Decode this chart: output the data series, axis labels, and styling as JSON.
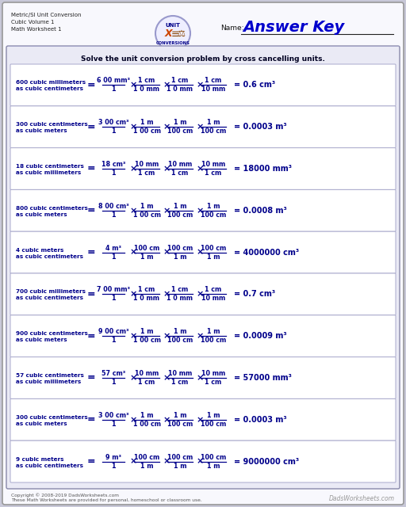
{
  "title_left": [
    "Metric/SI Unit Conversion",
    "Cubic Volume 1",
    "Math Worksheet 1"
  ],
  "answer_key": "Answer Key",
  "name_label": "Name:",
  "instruction": "Solve the unit conversion problem by cross cancelling units.",
  "dark_blue": "#00008B",
  "problems": [
    {
      "line1": "600 cubic millimeters",
      "line2": "as cubic centimeters",
      "num_frac": "6 00 mm³",
      "den_frac": "1",
      "fracs": [
        {
          "num": "1 cm",
          "den": "1 0 mm"
        },
        {
          "num": "1 cm",
          "den": "1 0 mm"
        },
        {
          "num": "1 cm",
          "den": "10 mm"
        }
      ],
      "result": "0.6 cm³"
    },
    {
      "line1": "300 cubic centimeters",
      "line2": "as cubic meters",
      "num_frac": "3 00 cm³",
      "den_frac": "1",
      "fracs": [
        {
          "num": "1 m",
          "den": "1 00 cm"
        },
        {
          "num": "1 m",
          "den": "100 cm"
        },
        {
          "num": "1 m",
          "den": "100 cm"
        }
      ],
      "result": "0.0003 m³"
    },
    {
      "line1": "18 cubic centimeters",
      "line2": "as cubic millimeters",
      "num_frac": "18 cm³",
      "den_frac": "1",
      "fracs": [
        {
          "num": "10 mm",
          "den": "1 cm"
        },
        {
          "num": "10 mm",
          "den": "1 cm"
        },
        {
          "num": "10 mm",
          "den": "1 cm"
        }
      ],
      "result": "18000 mm³"
    },
    {
      "line1": "800 cubic centimeters",
      "line2": "as cubic meters",
      "num_frac": "8 00 cm³",
      "den_frac": "1",
      "fracs": [
        {
          "num": "1 m",
          "den": "1 00 cm"
        },
        {
          "num": "1 m",
          "den": "100 cm"
        },
        {
          "num": "1 m",
          "den": "100 cm"
        }
      ],
      "result": "0.0008 m³"
    },
    {
      "line1": "4 cubic meters",
      "line2": "as cubic centimeters",
      "num_frac": "4 m³",
      "den_frac": "1",
      "fracs": [
        {
          "num": "100 cm",
          "den": "1 m"
        },
        {
          "num": "100 cm",
          "den": "1 m"
        },
        {
          "num": "100 cm",
          "den": "1 m"
        }
      ],
      "result": "4000000 cm³"
    },
    {
      "line1": "700 cubic millimeters",
      "line2": "as cubic centimeters",
      "num_frac": "7 00 mm³",
      "den_frac": "1",
      "fracs": [
        {
          "num": "1 cm",
          "den": "1 0 mm"
        },
        {
          "num": "1 cm",
          "den": "1 0 mm"
        },
        {
          "num": "1 cm",
          "den": "10 mm"
        }
      ],
      "result": "0.7 cm³"
    },
    {
      "line1": "900 cubic centimeters",
      "line2": "as cubic meters",
      "num_frac": "9 00 cm³",
      "den_frac": "1",
      "fracs": [
        {
          "num": "1 m",
          "den": "1 00 cm"
        },
        {
          "num": "1 m",
          "den": "100 cm"
        },
        {
          "num": "1 m",
          "den": "100 cm"
        }
      ],
      "result": "0.0009 m³"
    },
    {
      "line1": "57 cubic centimeters",
      "line2": "as cubic millimeters",
      "num_frac": "57 cm³",
      "den_frac": "1",
      "fracs": [
        {
          "num": "10 mm",
          "den": "1 cm"
        },
        {
          "num": "10 mm",
          "den": "1 cm"
        },
        {
          "num": "10 mm",
          "den": "1 cm"
        }
      ],
      "result": "57000 mm³"
    },
    {
      "line1": "300 cubic centimeters",
      "line2": "as cubic meters",
      "num_frac": "3 00 cm³",
      "den_frac": "1",
      "fracs": [
        {
          "num": "1 m",
          "den": "1 00 cm"
        },
        {
          "num": "1 m",
          "den": "100 cm"
        },
        {
          "num": "1 m",
          "den": "100 cm"
        }
      ],
      "result": "0.0003 m³"
    },
    {
      "line1": "9 cubic meters",
      "line2": "as cubic centimeters",
      "num_frac": "9 m³",
      "den_frac": "1",
      "fracs": [
        {
          "num": "100 cm",
          "den": "1 m"
        },
        {
          "num": "100 cm",
          "den": "1 m"
        },
        {
          "num": "100 cm",
          "den": "1 m"
        }
      ],
      "result": "9000000 cm³"
    }
  ],
  "footer": "Copyright © 2008-2019 DadsWorksheets.com",
  "footer2": "These Math Worksheets are provided for personal, homeschool or classroom use.",
  "watermark": "DadsWorksheets.com"
}
